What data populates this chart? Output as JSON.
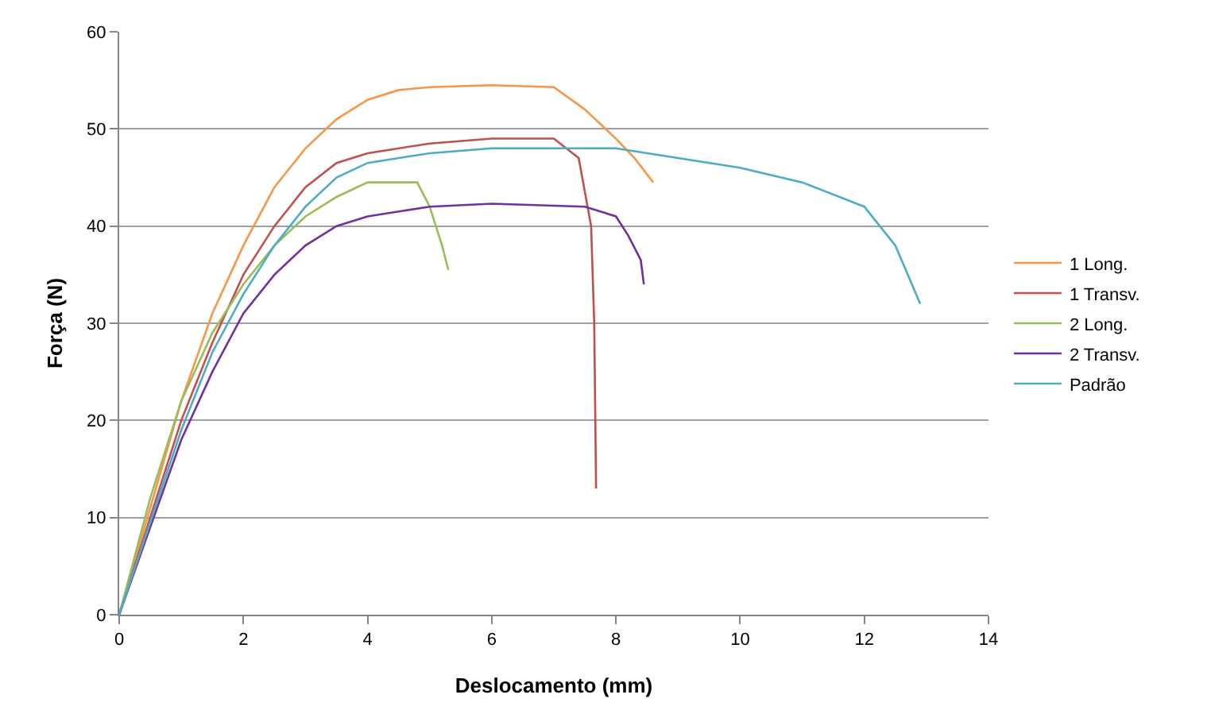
{
  "chart_data": {
    "type": "line",
    "xlabel": "Deslocamento (mm)",
    "ylabel": "Força (N)",
    "xlim": [
      0,
      14
    ],
    "xticks": [
      0,
      2,
      4,
      6,
      8,
      10,
      12,
      14
    ],
    "ylim": [
      0,
      60
    ],
    "yticks": [
      0,
      10,
      20,
      30,
      40,
      50,
      60
    ],
    "grid": "y",
    "legend": "right",
    "marker": "none",
    "line_style": "solid",
    "series": [
      {
        "name": "1 Long.",
        "color": "#f79646",
        "x": [
          0,
          0.5,
          1,
          1.5,
          2,
          2.5,
          3,
          3.5,
          4,
          4.5,
          5,
          6,
          7,
          7.5,
          8,
          8.3,
          8.6
        ],
        "values": [
          0,
          11,
          22,
          31,
          38,
          44,
          48,
          51,
          53,
          54,
          54.3,
          54.5,
          54.3,
          52,
          49,
          47,
          44.5
        ]
      },
      {
        "name": "1 Transv.",
        "color": "#c0504d",
        "x": [
          0,
          0.5,
          1,
          1.5,
          2,
          2.5,
          3,
          3.5,
          4,
          5,
          6,
          7,
          7.4,
          7.6,
          7.65,
          7.68
        ],
        "values": [
          0,
          10,
          20,
          28,
          35,
          40,
          44,
          46.5,
          47.5,
          48.5,
          49,
          49,
          47,
          40,
          30,
          13
        ]
      },
      {
        "name": "2 Long.",
        "color": "#9bbb59",
        "x": [
          0,
          0.5,
          1,
          1.5,
          2,
          2.5,
          3,
          3.5,
          4,
          4.8,
          5,
          5.2,
          5.3
        ],
        "values": [
          0,
          12,
          22,
          29,
          34,
          38,
          41,
          43,
          44.5,
          44.5,
          42,
          38,
          35.5
        ]
      },
      {
        "name": "2 Transv.",
        "color": "#7030a0",
        "x": [
          0,
          0.5,
          1,
          1.5,
          2,
          2.5,
          3,
          3.5,
          4,
          5,
          6,
          7.5,
          8,
          8.2,
          8.4,
          8.45
        ],
        "values": [
          0,
          9,
          18,
          25,
          31,
          35,
          38,
          40,
          41,
          42,
          42.3,
          42,
          41,
          39,
          36.5,
          34
        ]
      },
      {
        "name": "Padrão",
        "color": "#4bacc6",
        "x": [
          0,
          0.5,
          1,
          1.5,
          2,
          2.5,
          3,
          3.5,
          4,
          5,
          6,
          8,
          9,
          10,
          11,
          12,
          12.5,
          12.9
        ],
        "values": [
          0,
          9.5,
          19,
          27,
          33,
          38,
          42,
          45,
          46.5,
          47.5,
          48,
          48,
          47,
          46,
          44.5,
          42,
          38,
          32
        ]
      }
    ]
  }
}
